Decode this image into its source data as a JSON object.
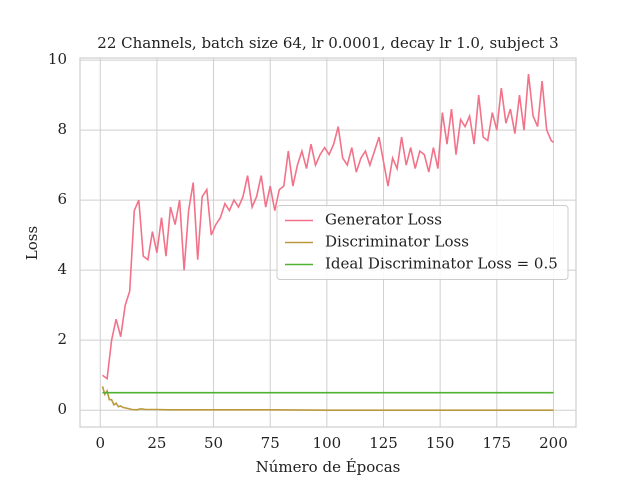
{
  "chart_data": {
    "type": "line",
    "title": "22 Channels, batch size 64, lr 0.0001, decay lr 1.0, subject 3",
    "x_label": "Número de Épocas",
    "y_label": "Loss",
    "xlim": [
      -8.95,
      209.95
    ],
    "ylim": [
      -0.48,
      10.06
    ],
    "xticks": [
      0,
      25,
      50,
      75,
      100,
      125,
      150,
      175,
      200
    ],
    "yticks": [
      0,
      2,
      4,
      6,
      8,
      10
    ],
    "grid": true,
    "legend": "center right",
    "series": [
      {
        "name": "Generator Loss",
        "color": "#f27289",
        "x": [
          1,
          3,
          5,
          7,
          9,
          11,
          13,
          15,
          17,
          19,
          21,
          23,
          25,
          27,
          29,
          31,
          33,
          35,
          37,
          39,
          41,
          43,
          45,
          47,
          49,
          51,
          53,
          55,
          57,
          59,
          61,
          63,
          65,
          67,
          69,
          71,
          73,
          75,
          77,
          79,
          81,
          83,
          85,
          87,
          89,
          91,
          93,
          95,
          97,
          99,
          101,
          103,
          105,
          107,
          109,
          111,
          113,
          115,
          117,
          119,
          121,
          123,
          125,
          127,
          129,
          131,
          133,
          135,
          137,
          139,
          141,
          143,
          145,
          147,
          149,
          151,
          153,
          155,
          157,
          159,
          161,
          163,
          165,
          167,
          169,
          171,
          173,
          175,
          177,
          179,
          181,
          183,
          185,
          187,
          189,
          191,
          193,
          195,
          197,
          199,
          200
        ],
        "values": [
          1.0,
          0.9,
          2.0,
          2.6,
          2.1,
          3.0,
          3.4,
          5.7,
          6.0,
          4.4,
          4.3,
          5.1,
          4.5,
          5.5,
          4.4,
          5.8,
          5.3,
          6.0,
          4.0,
          5.7,
          6.5,
          4.3,
          6.1,
          6.3,
          5.0,
          5.3,
          5.5,
          5.9,
          5.7,
          6.0,
          5.8,
          6.1,
          6.7,
          5.8,
          6.1,
          6.7,
          5.8,
          6.4,
          5.7,
          6.3,
          6.4,
          7.4,
          6.4,
          7.0,
          7.4,
          6.9,
          7.6,
          7.0,
          7.3,
          7.5,
          7.3,
          7.6,
          8.1,
          7.2,
          7.0,
          7.5,
          6.8,
          7.2,
          7.4,
          7.0,
          7.4,
          7.8,
          7.1,
          6.4,
          7.2,
          6.9,
          7.8,
          7.0,
          7.5,
          6.9,
          7.4,
          7.3,
          6.8,
          7.5,
          6.9,
          8.5,
          7.6,
          8.6,
          7.3,
          8.3,
          8.1,
          8.4,
          7.6,
          9.0,
          7.8,
          7.7,
          8.5,
          8.0,
          9.2,
          8.2,
          8.6,
          7.9,
          9.0,
          8.0,
          9.6,
          8.4,
          8.1,
          9.4,
          8.0,
          7.7,
          7.65
        ]
      },
      {
        "name": "Discriminator Loss",
        "color": "#bb9a3c",
        "x": [
          1,
          2,
          3,
          4,
          5,
          6,
          7,
          8,
          9,
          10,
          12,
          14,
          16,
          18,
          20,
          25,
          30,
          40,
          50,
          75,
          100,
          150,
          200
        ],
        "values": [
          0.68,
          0.45,
          0.55,
          0.3,
          0.3,
          0.15,
          0.2,
          0.1,
          0.12,
          0.08,
          0.05,
          0.02,
          0.01,
          0.04,
          0.02,
          0.02,
          0.01,
          0.01,
          0.01,
          0.01,
          0.0,
          0.0,
          0.0
        ]
      },
      {
        "name": "Ideal Discriminator Loss = 0.5",
        "color": "#4fb132",
        "x": [
          1,
          200
        ],
        "values": [
          0.5,
          0.5
        ]
      }
    ]
  }
}
